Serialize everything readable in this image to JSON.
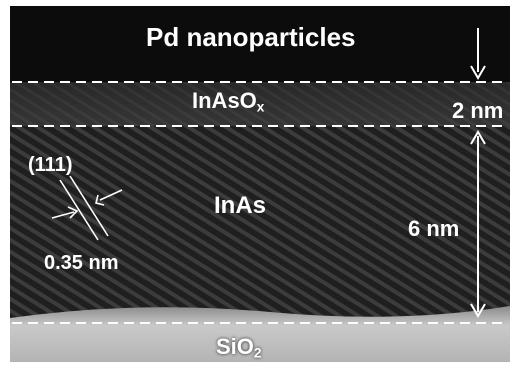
{
  "labels": {
    "top_layer": "Pd nanoparticles",
    "oxide_main": "InAsO",
    "oxide_sub": "x",
    "oxide_thickness": "2 nm",
    "plane": "(111)",
    "crystal": "InAs",
    "spacing": "0.35 nm",
    "crystal_thickness": "6 nm",
    "substrate_main": "SiO",
    "substrate_sub": "2"
  },
  "colors": {
    "top_band": "#0b0b0b",
    "oxide_band": "#3a3a3a",
    "crystal_band": "#2b2b2b",
    "substrate_band": "#bdbdbd",
    "annotation": "#ffffff"
  }
}
